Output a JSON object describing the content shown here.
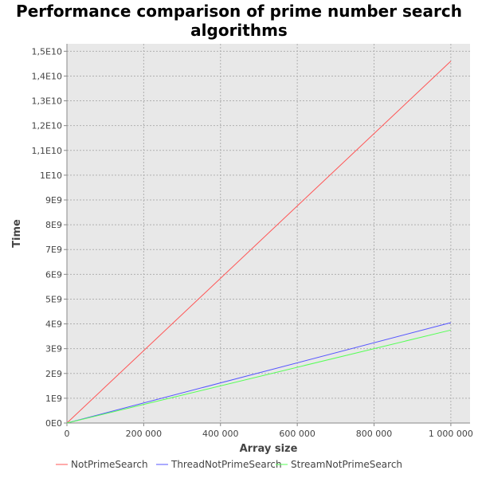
{
  "chart_data": {
    "type": "line",
    "title": "Performance comparison of prime number search algorithms",
    "xlabel": "Array size",
    "ylabel": "Time",
    "xlim": [
      0,
      1050000
    ],
    "ylim": [
      0,
      15300000000
    ],
    "x_ticks": [
      {
        "value": 0,
        "label": "0"
      },
      {
        "value": 200000,
        "label": "200 000"
      },
      {
        "value": 400000,
        "label": "400 000"
      },
      {
        "value": 600000,
        "label": "600 000"
      },
      {
        "value": 800000,
        "label": "800 000"
      },
      {
        "value": 1000000,
        "label": "1 000 000"
      }
    ],
    "y_ticks": [
      {
        "value": 0,
        "label": "0E0"
      },
      {
        "value": 1000000000,
        "label": "1E9"
      },
      {
        "value": 2000000000,
        "label": "2E9"
      },
      {
        "value": 3000000000,
        "label": "3E9"
      },
      {
        "value": 4000000000,
        "label": "4E9"
      },
      {
        "value": 5000000000,
        "label": "5E9"
      },
      {
        "value": 6000000000,
        "label": "6E9"
      },
      {
        "value": 7000000000,
        "label": "7E9"
      },
      {
        "value": 8000000000,
        "label": "8E9"
      },
      {
        "value": 9000000000,
        "label": "9E9"
      },
      {
        "value": 10000000000,
        "label": "1E10"
      },
      {
        "value": 11000000000,
        "label": "1,1E10"
      },
      {
        "value": 12000000000,
        "label": "1,2E10"
      },
      {
        "value": 13000000000,
        "label": "1,3E10"
      },
      {
        "value": 14000000000,
        "label": "1,4E10"
      },
      {
        "value": 15000000000,
        "label": "1,5E10"
      }
    ],
    "grid": true,
    "legend_position": "bottom",
    "series": [
      {
        "name": "NotPrimeSearch",
        "color": "#ff5555",
        "x": [
          0,
          1000000
        ],
        "y": [
          0,
          14600000000
        ]
      },
      {
        "name": "ThreadNotPrimeSearch",
        "color": "#5555ff",
        "x": [
          0,
          1000000
        ],
        "y": [
          0,
          4050000000
        ]
      },
      {
        "name": "StreamNotPrimeSearch",
        "color": "#55ff55",
        "x": [
          0,
          1000000
        ],
        "y": [
          0,
          3750000000
        ]
      }
    ]
  }
}
